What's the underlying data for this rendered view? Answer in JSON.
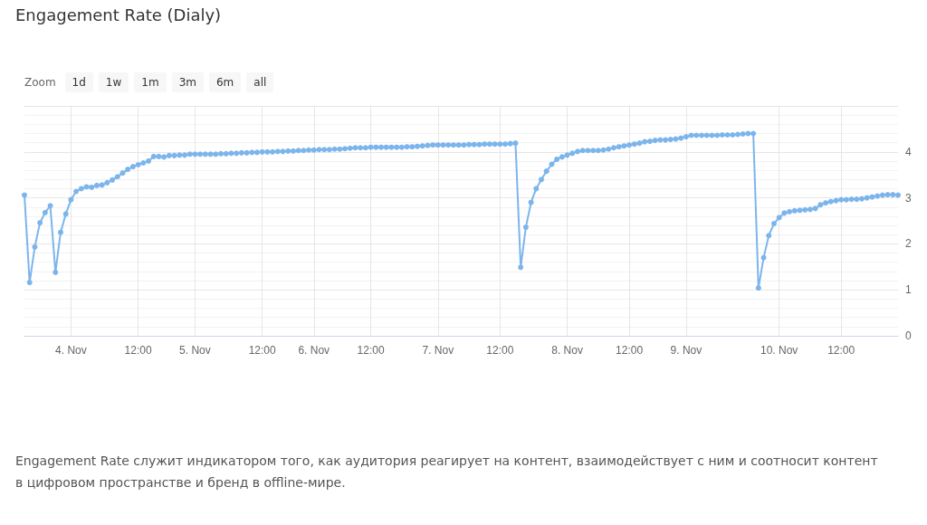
{
  "chart_data": {
    "type": "line",
    "title": "Engagement Rate (Dialy)",
    "categories": [
      null,
      null,
      null,
      null,
      null,
      null,
      null,
      null,
      null,
      "4. Nov",
      null,
      null,
      null,
      null,
      null,
      null,
      null,
      null,
      null,
      null,
      null,
      null,
      "12:00",
      null,
      null,
      null,
      null,
      null,
      null,
      null,
      null,
      null,
      null,
      "5. Nov",
      null,
      null,
      null,
      null,
      null,
      null,
      null,
      null,
      null,
      null,
      null,
      null,
      "12:00",
      null,
      null,
      null,
      null,
      null,
      null,
      null,
      null,
      null,
      "6. Nov",
      null,
      null,
      null,
      null,
      null,
      null,
      null,
      null,
      null,
      null,
      "12:00",
      null,
      null,
      null,
      null,
      null,
      null,
      null,
      null,
      null,
      null,
      null,
      null,
      "7. Nov",
      null,
      null,
      null,
      null,
      null,
      null,
      null,
      null,
      null,
      null,
      null,
      "12:00",
      null,
      null,
      null,
      null,
      null,
      null,
      null,
      null,
      null,
      null,
      null,
      null,
      "8. Nov",
      null,
      null,
      null,
      null,
      null,
      null,
      null,
      null,
      null,
      null,
      null,
      "12:00",
      null,
      null,
      null,
      null,
      null,
      null,
      null,
      null,
      null,
      null,
      "9. Nov",
      null,
      null,
      null,
      null,
      null,
      null,
      null,
      null,
      null,
      null,
      null,
      null,
      null,
      null,
      null,
      null,
      null,
      "10. Nov",
      null,
      null,
      null,
      null,
      null,
      null,
      null,
      null,
      null,
      null,
      null,
      "12:00",
      null,
      null,
      null,
      null,
      null,
      null,
      null,
      null,
      null,
      null,
      null
    ],
    "values": [
      3.06,
      1.16,
      1.93,
      2.46,
      2.68,
      2.83,
      1.38,
      2.25,
      2.65,
      2.96,
      3.14,
      3.2,
      3.24,
      3.23,
      3.27,
      3.28,
      3.33,
      3.39,
      3.46,
      3.54,
      3.62,
      3.68,
      3.72,
      3.76,
      3.8,
      3.9,
      3.9,
      3.89,
      3.92,
      3.92,
      3.93,
      3.93,
      3.95,
      3.95,
      3.95,
      3.95,
      3.95,
      3.95,
      3.96,
      3.96,
      3.97,
      3.97,
      3.98,
      3.98,
      3.99,
      3.99,
      4.0,
      4.0,
      4.0,
      4.01,
      4.01,
      4.02,
      4.02,
      4.03,
      4.03,
      4.04,
      4.04,
      4.05,
      4.05,
      4.05,
      4.06,
      4.06,
      4.07,
      4.08,
      4.09,
      4.09,
      4.09,
      4.1,
      4.1,
      4.1,
      4.1,
      4.1,
      4.1,
      4.1,
      4.11,
      4.11,
      4.12,
      4.13,
      4.14,
      4.15,
      4.15,
      4.15,
      4.15,
      4.15,
      4.15,
      4.15,
      4.16,
      4.16,
      4.16,
      4.17,
      4.17,
      4.17,
      4.17,
      4.17,
      4.18,
      4.19,
      1.49,
      2.36,
      2.9,
      3.2,
      3.4,
      3.58,
      3.73,
      3.84,
      3.89,
      3.93,
      3.97,
      4.01,
      4.03,
      4.03,
      4.03,
      4.03,
      4.04,
      4.06,
      4.09,
      4.11,
      4.13,
      4.15,
      4.17,
      4.19,
      4.22,
      4.23,
      4.25,
      4.26,
      4.26,
      4.27,
      4.28,
      4.3,
      4.33,
      4.36,
      4.36,
      4.36,
      4.36,
      4.36,
      4.36,
      4.37,
      4.37,
      4.37,
      4.38,
      4.39,
      4.4,
      4.4,
      1.04,
      1.7,
      2.18,
      2.44,
      2.57,
      2.67,
      2.7,
      2.72,
      2.73,
      2.74,
      2.75,
      2.77,
      2.85,
      2.89,
      2.92,
      2.94,
      2.96,
      2.96,
      2.97,
      2.97,
      2.98,
      3.0,
      3.02,
      3.04,
      3.06,
      3.07,
      3.07,
      3.06
    ],
    "color": "#7cb5ec",
    "ylim": [
      0,
      5
    ],
    "yticks": [
      0,
      1,
      2,
      3,
      4,
      {
        "value": 5,
        "label": null
      }
    ],
    "grid": true,
    "marker": "circle",
    "annotations": [
      "Zoom",
      "1d",
      "1w",
      "1m",
      "3m",
      "6m",
      "all",
      "Engagement Rate служит индикатором того, как аудитория реагирует на контент, взаимодействует с ним и соотносит контент в цифровом пространстве и бренд в offline-мире."
    ]
  }
}
